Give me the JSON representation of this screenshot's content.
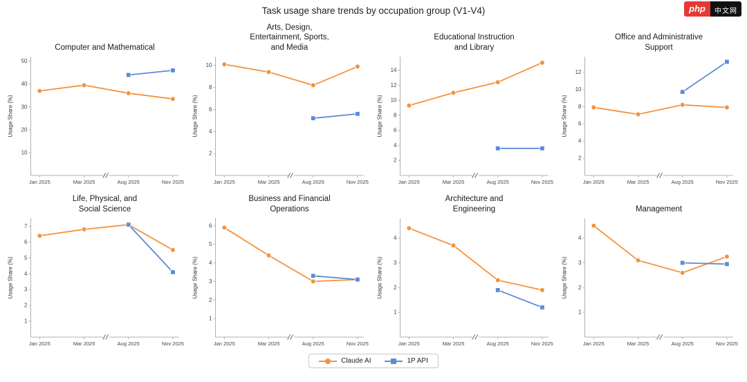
{
  "page": {
    "title": "Task usage share trends by occupation group (V1-V4)"
  },
  "logo": {
    "text": "php",
    "suffix": "中文网",
    "bg": "#e53935",
    "suffix_bg": "#111111"
  },
  "colors": {
    "claude": "#f5913c",
    "api": "#5b8bd5",
    "axis": "#b0b0b0",
    "tick_text": "#444444"
  },
  "legend": [
    {
      "label": "Claude AI",
      "color": "#f5913c",
      "marker": "circle"
    },
    {
      "label": "1P API",
      "color": "#5b8bd5",
      "marker": "square"
    }
  ],
  "chart_data": [
    {
      "type": "line",
      "title": "Computer and Mathematical",
      "ylabel": "Usage Share (%)",
      "x": [
        "Jan 2025",
        "Mar 2025",
        "Aug 2025",
        "Nov 2025"
      ],
      "ylim": [
        0,
        52
      ],
      "yticks": [
        10,
        20,
        30,
        40,
        50
      ],
      "series": [
        {
          "name": "Claude AI",
          "x_idx": [
            0,
            1,
            2,
            3
          ],
          "values": [
            37,
            39.5,
            36,
            33.5
          ]
        },
        {
          "name": "1P API",
          "x_idx": [
            2,
            3
          ],
          "values": [
            44,
            46
          ]
        }
      ]
    },
    {
      "type": "line",
      "title": "Arts, Design,\nEntertainment, Sports,\nand Media",
      "ylabel": "Usage Share (%)",
      "x": [
        "Jan 2025",
        "Mar 2025",
        "Aug 2025",
        "Nov 2025"
      ],
      "ylim": [
        0,
        10.8
      ],
      "yticks": [
        2,
        4,
        6,
        8,
        10
      ],
      "series": [
        {
          "name": "Claude AI",
          "x_idx": [
            0,
            1,
            2,
            3
          ],
          "values": [
            10.1,
            9.4,
            8.2,
            9.9
          ]
        },
        {
          "name": "1P API",
          "x_idx": [
            2,
            3
          ],
          "values": [
            5.2,
            5.6
          ]
        }
      ]
    },
    {
      "type": "line",
      "title": "Educational Instruction\nand Library",
      "ylabel": "Usage Share (%)",
      "x": [
        "Jan 2025",
        "Mar 2025",
        "Aug 2025",
        "Nov 2025"
      ],
      "ylim": [
        0,
        15.8
      ],
      "yticks": [
        2,
        4,
        6,
        8,
        10,
        12,
        14
      ],
      "series": [
        {
          "name": "Claude AI",
          "x_idx": [
            0,
            1,
            2,
            3
          ],
          "values": [
            9.3,
            11,
            12.4,
            15
          ]
        },
        {
          "name": "1P API",
          "x_idx": [
            2,
            3
          ],
          "values": [
            3.6,
            3.6
          ]
        }
      ]
    },
    {
      "type": "line",
      "title": "Office and Administrative\nSupport",
      "ylabel": "Usage Share (%)",
      "x": [
        "Jan 2025",
        "Mar 2025",
        "Aug 2025",
        "Nov 2025"
      ],
      "ylim": [
        0,
        13.8
      ],
      "yticks": [
        2,
        4,
        6,
        8,
        10,
        12
      ],
      "series": [
        {
          "name": "Claude AI",
          "x_idx": [
            0,
            1,
            2,
            3
          ],
          "values": [
            7.9,
            7.1,
            8.2,
            7.9
          ]
        },
        {
          "name": "1P API",
          "x_idx": [
            2,
            3
          ],
          "values": [
            9.7,
            13.2
          ]
        }
      ]
    },
    {
      "type": "line",
      "title": "Life, Physical, and\nSocial Science",
      "ylabel": "Usage Share (%)",
      "x": [
        "Jan 2025",
        "Mar 2025",
        "Aug 2025",
        "Nov 2025"
      ],
      "ylim": [
        0,
        7.5
      ],
      "yticks": [
        1,
        2,
        3,
        4,
        5,
        6,
        7
      ],
      "series": [
        {
          "name": "Claude AI",
          "x_idx": [
            0,
            1,
            2,
            3
          ],
          "values": [
            6.4,
            6.8,
            7.1,
            5.5
          ]
        },
        {
          "name": "1P API",
          "x_idx": [
            2,
            3
          ],
          "values": [
            7.1,
            4.1
          ]
        }
      ]
    },
    {
      "type": "line",
      "title": "Business and Financial\nOperations",
      "ylabel": "Usage Share (%)",
      "x": [
        "Jan 2025",
        "Mar 2025",
        "Aug 2025",
        "Nov 2025"
      ],
      "ylim": [
        0,
        6.4
      ],
      "yticks": [
        1,
        2,
        3,
        4,
        5,
        6
      ],
      "series": [
        {
          "name": "Claude AI",
          "x_idx": [
            0,
            1,
            2,
            3
          ],
          "values": [
            5.9,
            4.4,
            3.0,
            3.1
          ]
        },
        {
          "name": "1P API",
          "x_idx": [
            2,
            3
          ],
          "values": [
            3.3,
            3.1
          ]
        }
      ]
    },
    {
      "type": "line",
      "title": "Architecture and\nEngineering",
      "ylabel": "Usage Share (%)",
      "x": [
        "Jan 2025",
        "Mar 2025",
        "Aug 2025",
        "Nov 2025"
      ],
      "ylim": [
        0,
        4.8
      ],
      "yticks": [
        1,
        2,
        3,
        4
      ],
      "series": [
        {
          "name": "Claude AI",
          "x_idx": [
            0,
            1,
            2,
            3
          ],
          "values": [
            4.4,
            3.7,
            2.3,
            1.9
          ]
        },
        {
          "name": "1P API",
          "x_idx": [
            2,
            3
          ],
          "values": [
            1.9,
            1.2
          ]
        }
      ]
    },
    {
      "type": "line",
      "title": "Management",
      "ylabel": "Usage Share (%)",
      "x": [
        "Jan 2025",
        "Mar 2025",
        "Aug 2025",
        "Nov 2025"
      ],
      "ylim": [
        0,
        4.8
      ],
      "yticks": [
        1,
        2,
        3,
        4
      ],
      "series": [
        {
          "name": "Claude AI",
          "x_idx": [
            0,
            1,
            2,
            3
          ],
          "values": [
            4.5,
            3.1,
            2.6,
            3.25
          ]
        },
        {
          "name": "1P API",
          "x_idx": [
            2,
            3
          ],
          "values": [
            3.0,
            2.95
          ]
        }
      ]
    }
  ]
}
